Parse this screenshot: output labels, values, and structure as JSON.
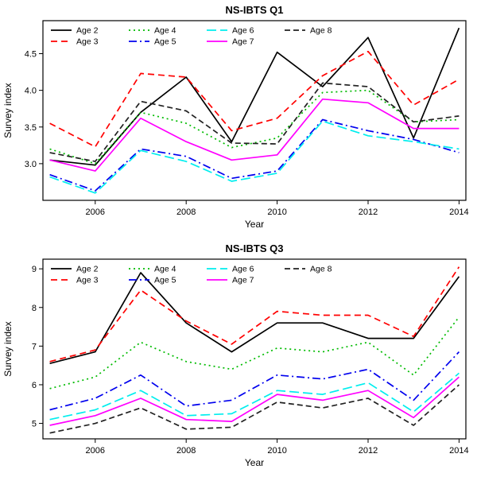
{
  "figure": {
    "background": "#ffffff"
  },
  "chart_data": [
    {
      "type": "line",
      "title": "NS-IBTS Q1",
      "xlabel": "Year",
      "ylabel": "Survey index",
      "x": [
        2005,
        2006,
        2007,
        2008,
        2009,
        2010,
        2011,
        2012,
        2013,
        2014
      ],
      "xlim": [
        2004.85,
        2014.15
      ],
      "ylim": [
        2.5,
        4.95
      ],
      "xticks": [
        2006,
        2008,
        2010,
        2012,
        2014
      ],
      "yticks": [
        3.0,
        3.5,
        4.0,
        4.5
      ],
      "ytick_labels": [
        "3.0",
        "3.5",
        "4.0",
        "4.5"
      ],
      "grid": false,
      "legend_position": "top-left",
      "series": [
        {
          "name": "Age 2",
          "color": "#000000",
          "dash": "solid",
          "values": [
            3.05,
            2.98,
            3.7,
            4.18,
            3.3,
            4.52,
            4.05,
            4.72,
            3.35,
            4.85
          ]
        },
        {
          "name": "Age 3",
          "color": "#ff0000",
          "dash": "dashed",
          "values": [
            3.55,
            3.23,
            4.23,
            4.18,
            3.45,
            3.62,
            4.2,
            4.53,
            3.8,
            4.15
          ]
        },
        {
          "name": "Age 4",
          "color": "#00bb00",
          "dash": "dotted",
          "values": [
            3.2,
            3.0,
            3.7,
            3.55,
            3.22,
            3.35,
            3.97,
            4.0,
            3.57,
            3.6
          ]
        },
        {
          "name": "Age 5",
          "color": "#0000ee",
          "dash": "dashdot",
          "values": [
            2.85,
            2.63,
            3.2,
            3.1,
            2.8,
            2.9,
            3.6,
            3.45,
            3.33,
            3.15
          ]
        },
        {
          "name": "Age 6",
          "color": "#00eeee",
          "dash": "longdash",
          "values": [
            2.82,
            2.6,
            3.18,
            3.03,
            2.76,
            2.87,
            3.58,
            3.38,
            3.3,
            3.2
          ]
        },
        {
          "name": "Age 7",
          "color": "#ff00ff",
          "dash": "solid",
          "values": [
            3.05,
            2.9,
            3.62,
            3.3,
            3.05,
            3.12,
            3.88,
            3.83,
            3.48,
            3.48
          ]
        },
        {
          "name": "Age 8",
          "color": "#222222",
          "dash": "twodash",
          "values": [
            3.15,
            3.03,
            3.85,
            3.72,
            3.28,
            3.27,
            4.1,
            4.05,
            3.57,
            3.65
          ]
        }
      ]
    },
    {
      "type": "line",
      "title": "NS-IBTS Q3",
      "xlabel": "Year",
      "ylabel": "Survey index",
      "x": [
        2005,
        2006,
        2007,
        2008,
        2009,
        2010,
        2011,
        2012,
        2013,
        2014
      ],
      "xlim": [
        2004.85,
        2014.15
      ],
      "ylim": [
        4.6,
        9.25
      ],
      "xticks": [
        2006,
        2008,
        2010,
        2012,
        2014
      ],
      "yticks": [
        5,
        6,
        7,
        8,
        9
      ],
      "ytick_labels": [
        "5",
        "6",
        "7",
        "8",
        "9"
      ],
      "grid": false,
      "legend_position": "top-left",
      "series": [
        {
          "name": "Age 2",
          "color": "#000000",
          "dash": "solid",
          "values": [
            6.55,
            6.85,
            8.9,
            7.6,
            6.85,
            7.6,
            7.6,
            7.2,
            7.2,
            8.8
          ]
        },
        {
          "name": "Age 3",
          "color": "#ff0000",
          "dash": "dashed",
          "values": [
            6.6,
            6.9,
            8.45,
            7.65,
            7.05,
            7.9,
            7.8,
            7.8,
            7.25,
            9.05
          ]
        },
        {
          "name": "Age 4",
          "color": "#00bb00",
          "dash": "dotted",
          "values": [
            5.9,
            6.2,
            7.1,
            6.6,
            6.4,
            6.95,
            6.85,
            7.1,
            6.25,
            7.75
          ]
        },
        {
          "name": "Age 5",
          "color": "#0000ee",
          "dash": "dashdot",
          "values": [
            5.35,
            5.65,
            6.25,
            5.45,
            5.6,
            6.25,
            6.15,
            6.4,
            5.6,
            6.85
          ]
        },
        {
          "name": "Age 6",
          "color": "#00eeee",
          "dash": "longdash",
          "values": [
            5.1,
            5.35,
            5.85,
            5.2,
            5.25,
            5.85,
            5.75,
            6.05,
            5.3,
            6.3
          ]
        },
        {
          "name": "Age 7",
          "color": "#ff00ff",
          "dash": "solid",
          "values": [
            4.95,
            5.2,
            5.65,
            5.1,
            5.05,
            5.75,
            5.6,
            5.85,
            5.15,
            6.2
          ]
        },
        {
          "name": "Age 8",
          "color": "#222222",
          "dash": "twodash",
          "values": [
            4.75,
            5.0,
            5.4,
            4.85,
            4.9,
            5.55,
            5.4,
            5.65,
            4.95,
            6.0
          ]
        }
      ]
    }
  ]
}
